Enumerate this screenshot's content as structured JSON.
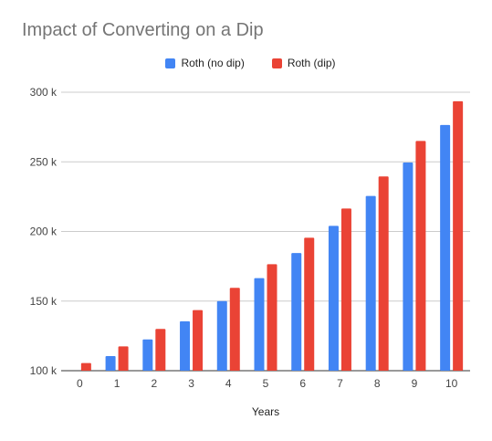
{
  "chart_data": {
    "type": "bar",
    "title": "Impact of Converting on a Dip",
    "xlabel": "Years",
    "ylabel": "",
    "categories": [
      "0",
      "1",
      "2",
      "3",
      "4",
      "5",
      "6",
      "7",
      "8",
      "9",
      "10"
    ],
    "ylim": [
      100000,
      300000
    ],
    "yticks": [
      100000,
      150000,
      200000,
      250000,
      300000
    ],
    "ytick_labels": [
      "100 k",
      "150 k",
      "200 k",
      "250 k",
      "300 k"
    ],
    "grid": true,
    "legend_position": "top",
    "series": [
      {
        "name": "Roth (no dip)",
        "color": "#4285f4",
        "values": [
          100000,
          110500,
          122500,
          135500,
          150000,
          166500,
          184500,
          204000,
          225500,
          249500,
          276500
        ]
      },
      {
        "name": "Roth (dip)",
        "color": "#ea4335",
        "values": [
          105500,
          117500,
          130000,
          143500,
          159500,
          176500,
          195500,
          216500,
          239500,
          265000,
          293500
        ]
      }
    ]
  }
}
